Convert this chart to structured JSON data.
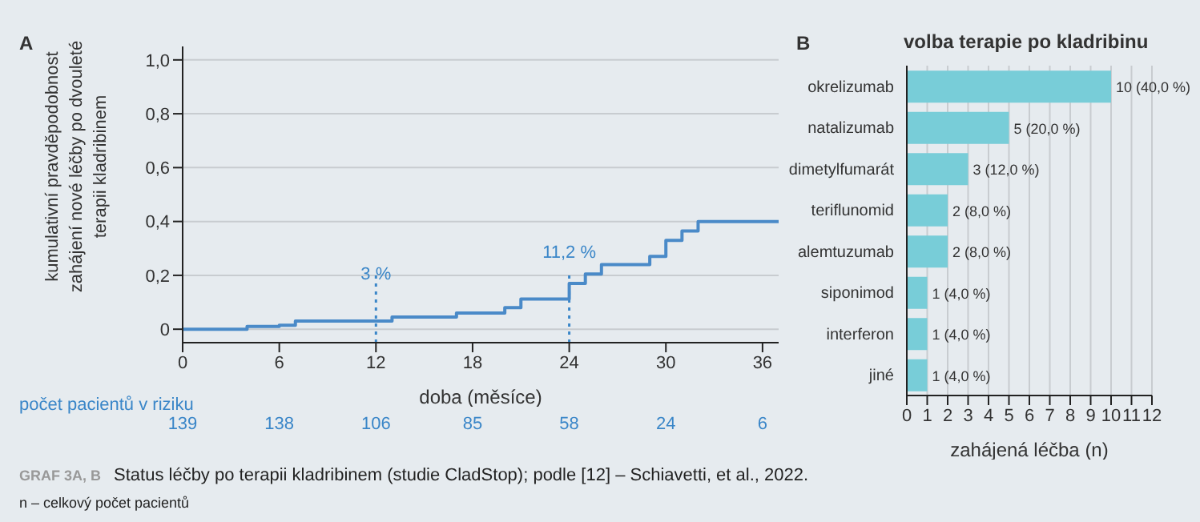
{
  "chart_data": [
    {
      "type": "step",
      "title": "A",
      "xlabel": "doba (měsíce)",
      "ylabel": "kumulativní pravděpodobnost zahájení nové léčby po dvouleté terapii kladribinem",
      "x": [
        0,
        4,
        6,
        7,
        13,
        17,
        20,
        21,
        24,
        25,
        26,
        29,
        30,
        31,
        32,
        37
      ],
      "series": [
        {
          "color": "#4a8ac8",
          "values": [
            0,
            0.01,
            0.015,
            0.03,
            0.045,
            0.06,
            0.08,
            0.112,
            0.17,
            0.205,
            0.24,
            0.27,
            0.33,
            0.365,
            0.4,
            0.4
          ]
        }
      ],
      "xlim": [
        0,
        37
      ],
      "xticks": [
        0,
        6,
        12,
        18,
        24,
        30,
        36
      ],
      "ylim": [
        -0.05,
        1.05
      ],
      "yticks": [
        0,
        {
          "value": 0.2,
          "label": "0,2"
        },
        {
          "value": 0.4,
          "label": "0,4"
        },
        {
          "value": 0.6,
          "label": "0,6"
        },
        {
          "value": 0.8,
          "label": "0,8"
        },
        {
          "value": 1,
          "label": "1,0"
        }
      ],
      "grid": "y",
      "line_style": "solid",
      "marker": "none",
      "ref_lines": [
        {
          "axis": "x",
          "value": 12,
          "color": "#3a86c8",
          "line_style": "dotted"
        },
        {
          "axis": "x",
          "value": 24,
          "color": "#3a86c8",
          "line_style": "dotted"
        }
      ],
      "annotations": [
        {
          "text": "3 %",
          "x": 12,
          "y": 0.03
        },
        {
          "text": "11,2 %",
          "x": 24,
          "y": 0.112
        },
        "počet pacientů v riziku",
        "139",
        "138",
        "106",
        "85",
        "58",
        "24",
        "6",
        "GRAF 3A, B",
        "Status léčby po terapii kladribinem (studie CladStop); podle [12] – Schiavetti, et al., 2022.",
        "n – celkový počet pacientů"
      ]
    },
    {
      "type": "bar",
      "orientation": "horizontal",
      "title": "B",
      "subtitle": "volba terapie po kladribinu",
      "xlabel": "zahájená léčba (n)",
      "categories": [
        "okrelizumab",
        "natalizumab",
        "dimetylfumarát",
        "teriflunomid",
        "alemtuzumab",
        "siponimod",
        "interferon",
        "jiné"
      ],
      "values": [
        10,
        5,
        3,
        2,
        2,
        1,
        1,
        1
      ],
      "color": "#78cdd8",
      "value_labels": [
        "10 (40,0 %)",
        "5 (20,0 %)",
        "3 (12,0 %)",
        "2 (8,0 %)",
        "2 (8,0 %)",
        "1 (4,0 %)",
        "1 (4,0 %)",
        "1 (4,0 %)"
      ],
      "xlim": [
        0,
        12
      ],
      "xticks": [
        0,
        1,
        2,
        3,
        4,
        5,
        6,
        7,
        8,
        9,
        10,
        11,
        12
      ],
      "grid": "x"
    }
  ]
}
